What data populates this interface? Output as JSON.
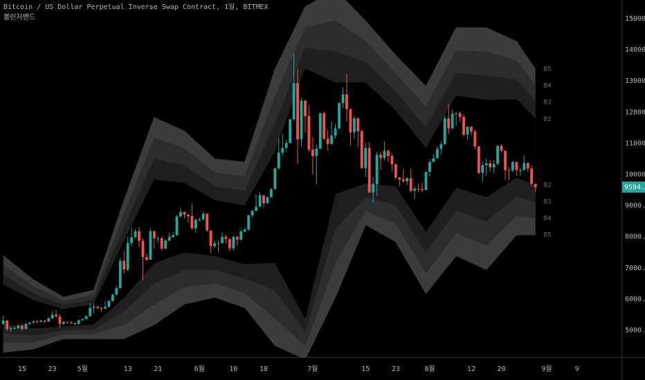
{
  "chart_data": {
    "type": "candlestick",
    "title": "Bitcoin / US Dollar Perpetual Inverse Swap Contract, 1일, BITMEX",
    "subtitle": "볼린저밴드",
    "up_color": "#26a69a",
    "down_color": "#ef5350",
    "grid": false,
    "xlim": [
      -0.86,
      163.8
    ],
    "xticks": [
      {
        "value": 5,
        "label": "15"
      },
      {
        "value": 13,
        "label": "23"
      },
      {
        "value": 21,
        "label": "5월"
      },
      {
        "value": 33,
        "label": "13"
      },
      {
        "value": 41,
        "label": "21"
      },
      {
        "value": 52,
        "label": "6월"
      },
      {
        "value": 61,
        "label": "10"
      },
      {
        "value": 69,
        "label": "18"
      },
      {
        "value": 82,
        "label": "7월"
      },
      {
        "value": 96,
        "label": "15"
      },
      {
        "value": 104,
        "label": "23"
      },
      {
        "value": 113,
        "label": "8월"
      },
      {
        "value": 124,
        "label": "12"
      },
      {
        "value": 132,
        "label": "20"
      },
      {
        "value": 144,
        "label": "9월"
      },
      {
        "value": 152,
        "label": "9"
      }
    ],
    "ylim": [
      4135,
      15600
    ],
    "yticks": [
      {
        "value": 5000,
        "label": "5000.0"
      },
      {
        "value": 6000,
        "label": "6000.0"
      },
      {
        "value": 7000,
        "label": "7000.0"
      },
      {
        "value": 8000,
        "label": "8000.0"
      },
      {
        "value": 9000,
        "label": "9000.0"
      },
      {
        "value": 10000,
        "label": "10000.0"
      },
      {
        "value": 11000,
        "label": "11000.0"
      },
      {
        "value": 12000,
        "label": "12000.0"
      },
      {
        "value": 13000,
        "label": "13000.0"
      },
      {
        "value": 14000,
        "label": "14000.0"
      },
      {
        "value": 15000,
        "label": "15000.0"
      }
    ],
    "open": [
      5200,
      5310,
      5040,
      5070,
      5070,
      5150,
      5040,
      5200,
      5240,
      5280,
      5270,
      5310,
      5280,
      5380,
      5500,
      5440,
      5210,
      5260,
      5250,
      5230,
      5200,
      5320,
      5360,
      5450,
      5720,
      5760,
      5720,
      5690,
      5750,
      5940,
      6140,
      6350,
      7230,
      6950,
      7800,
      7980,
      8180,
      7870,
      7350,
      7260,
      8180,
      7950,
      7950,
      7620,
      7880,
      7990,
      8050,
      8650,
      8800,
      8710,
      8660,
      8270,
      8550,
      8560,
      8740,
      8200,
      7700,
      7790,
      7800,
      8000,
      7930,
      7630,
      8000,
      7910,
      8170,
      8230,
      8690,
      8830,
      8960,
      9330,
      9080,
      9270,
      9530,
      10200,
      10700,
      10850,
      11010,
      11770,
      12930,
      11130,
      12370,
      11870,
      10800,
      10590,
      10830,
      11970,
      11150,
      10980,
      11250,
      11480,
      12290,
      12570,
      12100,
      11350,
      11800,
      11390,
      10200,
      10850,
      9420,
      9690,
      10630,
      10530,
      10760,
      10590,
      10330,
      9900,
      9840,
      9780,
      9880,
      9480,
      9540,
      9530,
      9500,
      10080,
      10400,
      10520,
      10820,
      10970,
      11800,
      11480,
      11950,
      11970,
      11850,
      11280,
      11530,
      11380,
      10900,
      10050,
      10300,
      10360,
      10230,
      10340,
      10920,
      10760,
      10140,
      10130,
      10400,
      10140,
      10140,
      10370,
      10190,
      9700
    ],
    "high": [
      5470,
      5330,
      5110,
      5120,
      5190,
      5200,
      5240,
      5280,
      5330,
      5340,
      5340,
      5330,
      5420,
      5600,
      5640,
      5510,
      5300,
      5280,
      5290,
      5250,
      5340,
      5380,
      5480,
      5860,
      5860,
      5780,
      5730,
      5940,
      5970,
      6170,
      6430,
      7320,
      7540,
      8000,
      8300,
      8250,
      8320,
      7950,
      7460,
      8270,
      8190,
      8030,
      8010,
      7920,
      8140,
      8150,
      8700,
      8940,
      8800,
      8730,
      9070,
      8570,
      8620,
      8810,
      8750,
      8210,
      7880,
      7890,
      8140,
      8060,
      7940,
      8040,
      8020,
      8250,
      8300,
      8700,
      8870,
      9350,
      9420,
      9330,
      9300,
      9580,
      10220,
      11170,
      11300,
      11100,
      11790,
      13880,
      13390,
      12460,
      12380,
      12220,
      11210,
      10960,
      11970,
      12020,
      11430,
      11700,
      11630,
      12330,
      12800,
      13230,
      12110,
      11890,
      11840,
      11450,
      11020,
      11040,
      9920,
      10720,
      10730,
      11050,
      10800,
      10670,
      10330,
      9920,
      10180,
      9900,
      10190,
      9620,
      9700,
      9730,
      10100,
      10480,
      10650,
      10910,
      11070,
      11890,
      12270,
      12080,
      11990,
      12010,
      11930,
      11550,
      11540,
      11430,
      10920,
      10420,
      10520,
      10470,
      10460,
      10940,
      10960,
      10770,
      10230,
      10430,
      10410,
      10230,
      10620,
      10380,
      10280,
      9700
    ],
    "low": [
      5180,
      4970,
      4950,
      5030,
      5040,
      4990,
      5030,
      5180,
      5230,
      5220,
      5260,
      5230,
      5260,
      5370,
      5410,
      5080,
      5160,
      5210,
      5200,
      5160,
      5190,
      5310,
      5350,
      5440,
      5540,
      5660,
      5590,
      5690,
      5730,
      5930,
      6130,
      6340,
      6820,
      6880,
      7700,
      7960,
      7670,
      6600,
      7220,
      7260,
      7620,
      7800,
      7570,
      7600,
      7850,
      7980,
      8040,
      8640,
      8600,
      8450,
      8240,
      8130,
      8480,
      8530,
      8170,
      7480,
      7650,
      7510,
      7780,
      7790,
      7540,
      7560,
      7710,
      7880,
      8140,
      8190,
      8630,
      8820,
      8960,
      8940,
      9060,
      9250,
      9520,
      10150,
      10600,
      10730,
      10990,
      11730,
      10340,
      10880,
      11340,
      10720,
      10000,
      9670,
      10800,
      11100,
      10770,
      10950,
      11160,
      11450,
      12130,
      11700,
      10930,
      11140,
      10880,
      10200,
      9920,
      9400,
      9080,
      9320,
      10150,
      10440,
      10390,
      10090,
      9840,
      9620,
      9730,
      9660,
      9410,
      9200,
      9440,
      9430,
      9500,
      9940,
      10400,
      10520,
      10630,
      10970,
      11290,
      11450,
      11570,
      11690,
      11230,
      11110,
      11250,
      10820,
      10010,
      9770,
      9970,
      10080,
      10050,
      10300,
      10700,
      9830,
      9800,
      10060,
      9960,
      9950,
      10140,
      10080,
      9620,
      9430
    ],
    "close": [
      5310,
      5040,
      5070,
      5070,
      5150,
      5040,
      5200,
      5240,
      5280,
      5270,
      5310,
      5280,
      5380,
      5500,
      5440,
      5210,
      5260,
      5250,
      5230,
      5200,
      5320,
      5360,
      5450,
      5720,
      5760,
      5720,
      5690,
      5750,
      5940,
      6140,
      6350,
      7230,
      6950,
      7800,
      7980,
      8180,
      7870,
      7350,
      7260,
      8180,
      7950,
      7950,
      7620,
      7880,
      7990,
      8050,
      8650,
      8800,
      8710,
      8660,
      8270,
      8550,
      8560,
      8740,
      8200,
      7700,
      7790,
      7800,
      8000,
      7930,
      7630,
      8000,
      7910,
      8170,
      8230,
      8690,
      8830,
      8960,
      9330,
      9080,
      9270,
      9530,
      10200,
      10700,
      10850,
      11010,
      11770,
      12930,
      11130,
      12370,
      11870,
      10800,
      10590,
      10830,
      11970,
      11150,
      10980,
      11250,
      11480,
      12290,
      12570,
      12100,
      11350,
      11800,
      11390,
      10200,
      10850,
      9420,
      9690,
      10630,
      10530,
      10760,
      10590,
      10330,
      9900,
      9840,
      9780,
      9880,
      9480,
      9540,
      9530,
      9500,
      10080,
      10400,
      10520,
      10820,
      10970,
      11800,
      11480,
      11950,
      11970,
      11850,
      11280,
      11530,
      11380,
      10900,
      10050,
      10300,
      10360,
      10230,
      10340,
      10920,
      10760,
      10140,
      10130,
      10400,
      10140,
      10140,
      10370,
      10190,
      9700,
      9594.5
    ],
    "bands": {
      "x": [
        0,
        8,
        16,
        24,
        32,
        40,
        48,
        56,
        64,
        72,
        80,
        88,
        96,
        104,
        112,
        120,
        128,
        136,
        141
      ],
      "series": [
        {
          "name": "B5",
          "color": "#3c3c3f",
          "values": [
            7390,
            6620,
            6060,
            6290,
            9170,
            11830,
            11390,
            10500,
            10390,
            13380,
            15380,
            15930,
            14930,
            13820,
            12830,
            14710,
            14710,
            14270,
            13380
          ]
        },
        {
          "name": "B4",
          "color": "#2d2d30",
          "values": [
            7080,
            6400,
            5930,
            6130,
            8720,
            11160,
            10830,
            10060,
            9920,
            12490,
            14710,
            14930,
            14270,
            13230,
            12160,
            13980,
            13930,
            13650,
            12850
          ]
        },
        {
          "name": "B3",
          "color": "#1f1f22",
          "values": [
            6770,
            6180,
            5800,
            5980,
            8280,
            10500,
            10280,
            9610,
            9460,
            11610,
            14050,
            13930,
            13600,
            12630,
            11500,
            13250,
            13160,
            13030,
            12320
          ]
        },
        {
          "name": "B2",
          "color": "#000000",
          "values": [
            6460,
            5950,
            5670,
            5820,
            7840,
            9830,
            9720,
            9170,
            8990,
            10720,
            13380,
            12940,
            12940,
            12030,
            10830,
            12520,
            12380,
            12400,
            11780
          ]
        },
        {
          "name": "B2",
          "color": "#000000",
          "values": [
            5220,
            5070,
            5130,
            5200,
            6060,
            7170,
            7510,
            7390,
            7130,
            7170,
            5400,
            9390,
            9720,
            9630,
            8170,
            9590,
            9280,
            9920,
            9660
          ]
        },
        {
          "name": "B3",
          "color": "#1f1f22",
          "values": [
            4910,
            4850,
            5000,
            5040,
            5620,
            6510,
            6950,
            6950,
            6660,
            6290,
            4960,
            8280,
            9280,
            9030,
            7510,
            8860,
            8500,
            9300,
            9120
          ]
        },
        {
          "name": "B4",
          "color": "#2d2d30",
          "values": [
            4600,
            4620,
            4870,
            4890,
            5180,
            5840,
            6400,
            6510,
            6200,
            5400,
            4510,
            7170,
            8840,
            8440,
            6840,
            8130,
            7730,
            8680,
            8590
          ]
        },
        {
          "name": "B5",
          "color": "#3c3c3f",
          "values": [
            4290,
            4400,
            4730,
            4730,
            4730,
            5180,
            5840,
            6060,
            5730,
            4510,
            4070,
            6060,
            8390,
            7840,
            6180,
            7390,
            6950,
            8060,
            8060
          ]
        }
      ]
    }
  }
}
